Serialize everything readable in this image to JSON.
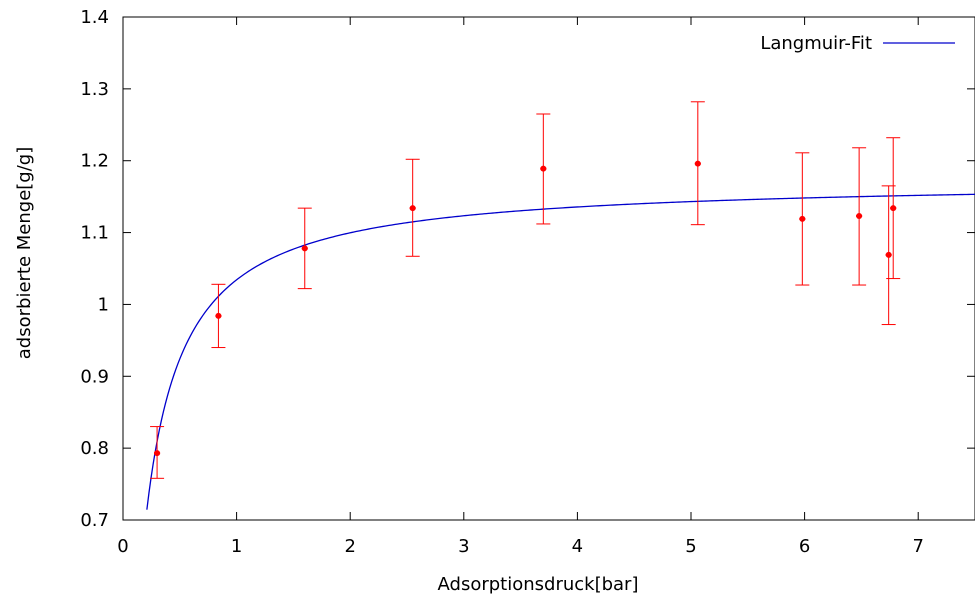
{
  "chart_data": {
    "type": "scatter",
    "title": "",
    "xlabel": "Adsorptionsdruck[bar]",
    "ylabel": "adsorbierte Menge[g/g]",
    "xlim": [
      0,
      7.5
    ],
    "ylim": [
      0.7,
      1.4
    ],
    "xticks": [
      0,
      1,
      2,
      3,
      4,
      5,
      6,
      7
    ],
    "xtick_labels": [
      "0",
      "1",
      "2",
      "3",
      "4",
      "5",
      "6",
      "7"
    ],
    "yticks": [
      0.7,
      0.8,
      0.9,
      1.0,
      1.1,
      1.2,
      1.3,
      1.4
    ],
    "ytick_labels": [
      "0.7",
      "0.8",
      "0.9",
      "1",
      "1.1",
      "1.2",
      "1.3",
      "1.4"
    ],
    "grid": false,
    "legend_position": "top-right",
    "legend": [
      "Langmuir-Fit"
    ],
    "series": [
      {
        "type": "scatter-errorbars",
        "color": "#ff0000",
        "points": [
          {
            "x": 0.3,
            "y": 0.793,
            "yerr_low": 0.758,
            "yerr_high": 0.83
          },
          {
            "x": 0.84,
            "y": 0.984,
            "yerr_low": 0.94,
            "yerr_high": 1.028
          },
          {
            "x": 1.6,
            "y": 1.078,
            "yerr_low": 1.022,
            "yerr_high": 1.134
          },
          {
            "x": 2.55,
            "y": 1.134,
            "yerr_low": 1.067,
            "yerr_high": 1.202
          },
          {
            "x": 3.7,
            "y": 1.189,
            "yerr_low": 1.112,
            "yerr_high": 1.265
          },
          {
            "x": 5.06,
            "y": 1.196,
            "yerr_low": 1.111,
            "yerr_high": 1.282
          },
          {
            "x": 5.98,
            "y": 1.119,
            "yerr_low": 1.027,
            "yerr_high": 1.211
          },
          {
            "x": 6.48,
            "y": 1.123,
            "yerr_low": 1.027,
            "yerr_high": 1.218
          },
          {
            "x": 6.74,
            "y": 1.069,
            "yerr_low": 0.972,
            "yerr_high": 1.165
          },
          {
            "x": 6.78,
            "y": 1.134,
            "yerr_low": 1.036,
            "yerr_high": 1.232
          }
        ]
      },
      {
        "name": "Langmuir-Fit",
        "type": "line",
        "color": "#0000cc",
        "model": "langmuir",
        "q_max": 1.174,
        "K": 7.4,
        "x_start": 0.21,
        "x_end": 7.5
      }
    ]
  }
}
